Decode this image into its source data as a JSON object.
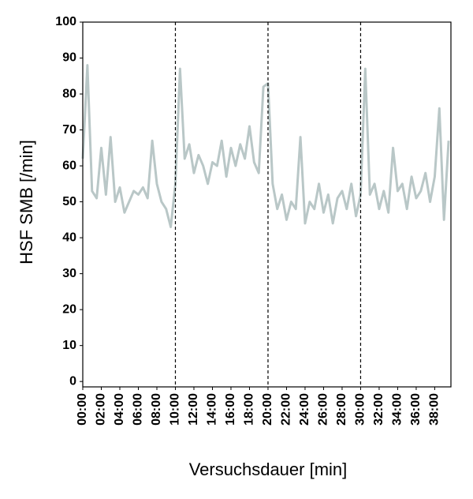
{
  "chart_data": {
    "type": "line",
    "xlabel": "Versuchsdauer [min]",
    "ylabel": "HSF SMB [/min]",
    "x": [
      0,
      0.5,
      1,
      1.5,
      2,
      2.5,
      3,
      3.5,
      4,
      4.5,
      5,
      5.5,
      6,
      6.5,
      7,
      7.5,
      8,
      8.5,
      9,
      9.5,
      10,
      10.5,
      11,
      11.5,
      12,
      12.5,
      13,
      13.5,
      14,
      14.5,
      15,
      15.5,
      16,
      16.5,
      17,
      17.5,
      18,
      18.5,
      19,
      19.5,
      20,
      20.5,
      21,
      21.5,
      22,
      22.5,
      23,
      23.5,
      24,
      24.5,
      25,
      25.5,
      26,
      26.5,
      27,
      27.5,
      28,
      28.5,
      29,
      29.5,
      30,
      30.5,
      31,
      31.5,
      32,
      32.5,
      33,
      33.5,
      34,
      34.5,
      35,
      35.5,
      36,
      36.5,
      37,
      37.5,
      38,
      38.5,
      39,
      39.5
    ],
    "series": [
      {
        "color": "#b9c7c7",
        "values": [
          62,
          88,
          53,
          51,
          65,
          52,
          68,
          50,
          54,
          47,
          50,
          53,
          52,
          54,
          51,
          67,
          55,
          50,
          48,
          43,
          55,
          87,
          62,
          66,
          58,
          63,
          60,
          55,
          61,
          60,
          67,
          57,
          65,
          60,
          66,
          62,
          71,
          61,
          58,
          82,
          83,
          55,
          48,
          52,
          45,
          50,
          48,
          68,
          44,
          50,
          48,
          55,
          47,
          52,
          44,
          51,
          53,
          48,
          55,
          46,
          52,
          87,
          52,
          55,
          48,
          53,
          47,
          65,
          53,
          55,
          48,
          57,
          51,
          53,
          58,
          50,
          57,
          76,
          45,
          67
        ]
      }
    ],
    "xlim": [
      0,
      39.75
    ],
    "ylim": [
      -1.5,
      100
    ],
    "xticks": [
      {
        "value": 0,
        "label": "00:00"
      },
      {
        "value": 2,
        "label": "02:00"
      },
      {
        "value": 4,
        "label": "04:00"
      },
      {
        "value": 6,
        "label": "06:00"
      },
      {
        "value": 8,
        "label": "08:00"
      },
      {
        "value": 10,
        "label": "10:00"
      },
      {
        "value": 12,
        "label": "12:00"
      },
      {
        "value": 14,
        "label": "14:00"
      },
      {
        "value": 16,
        "label": "16:00"
      },
      {
        "value": 18,
        "label": "18:00"
      },
      {
        "value": 20,
        "label": "20:00"
      },
      {
        "value": 22,
        "label": "22:00"
      },
      {
        "value": 24,
        "label": "24:00"
      },
      {
        "value": 26,
        "label": "26:00"
      },
      {
        "value": 28,
        "label": "28:00"
      },
      {
        "value": 30,
        "label": "30:00"
      },
      {
        "value": 32,
        "label": "32:00"
      },
      {
        "value": 34,
        "label": "34:00"
      },
      {
        "value": 36,
        "label": "36:00"
      },
      {
        "value": 38,
        "label": "38:00"
      }
    ],
    "yticks": [
      0,
      10,
      20,
      30,
      40,
      50,
      60,
      70,
      80,
      90,
      100
    ],
    "vlines": [
      10,
      20,
      30
    ]
  }
}
